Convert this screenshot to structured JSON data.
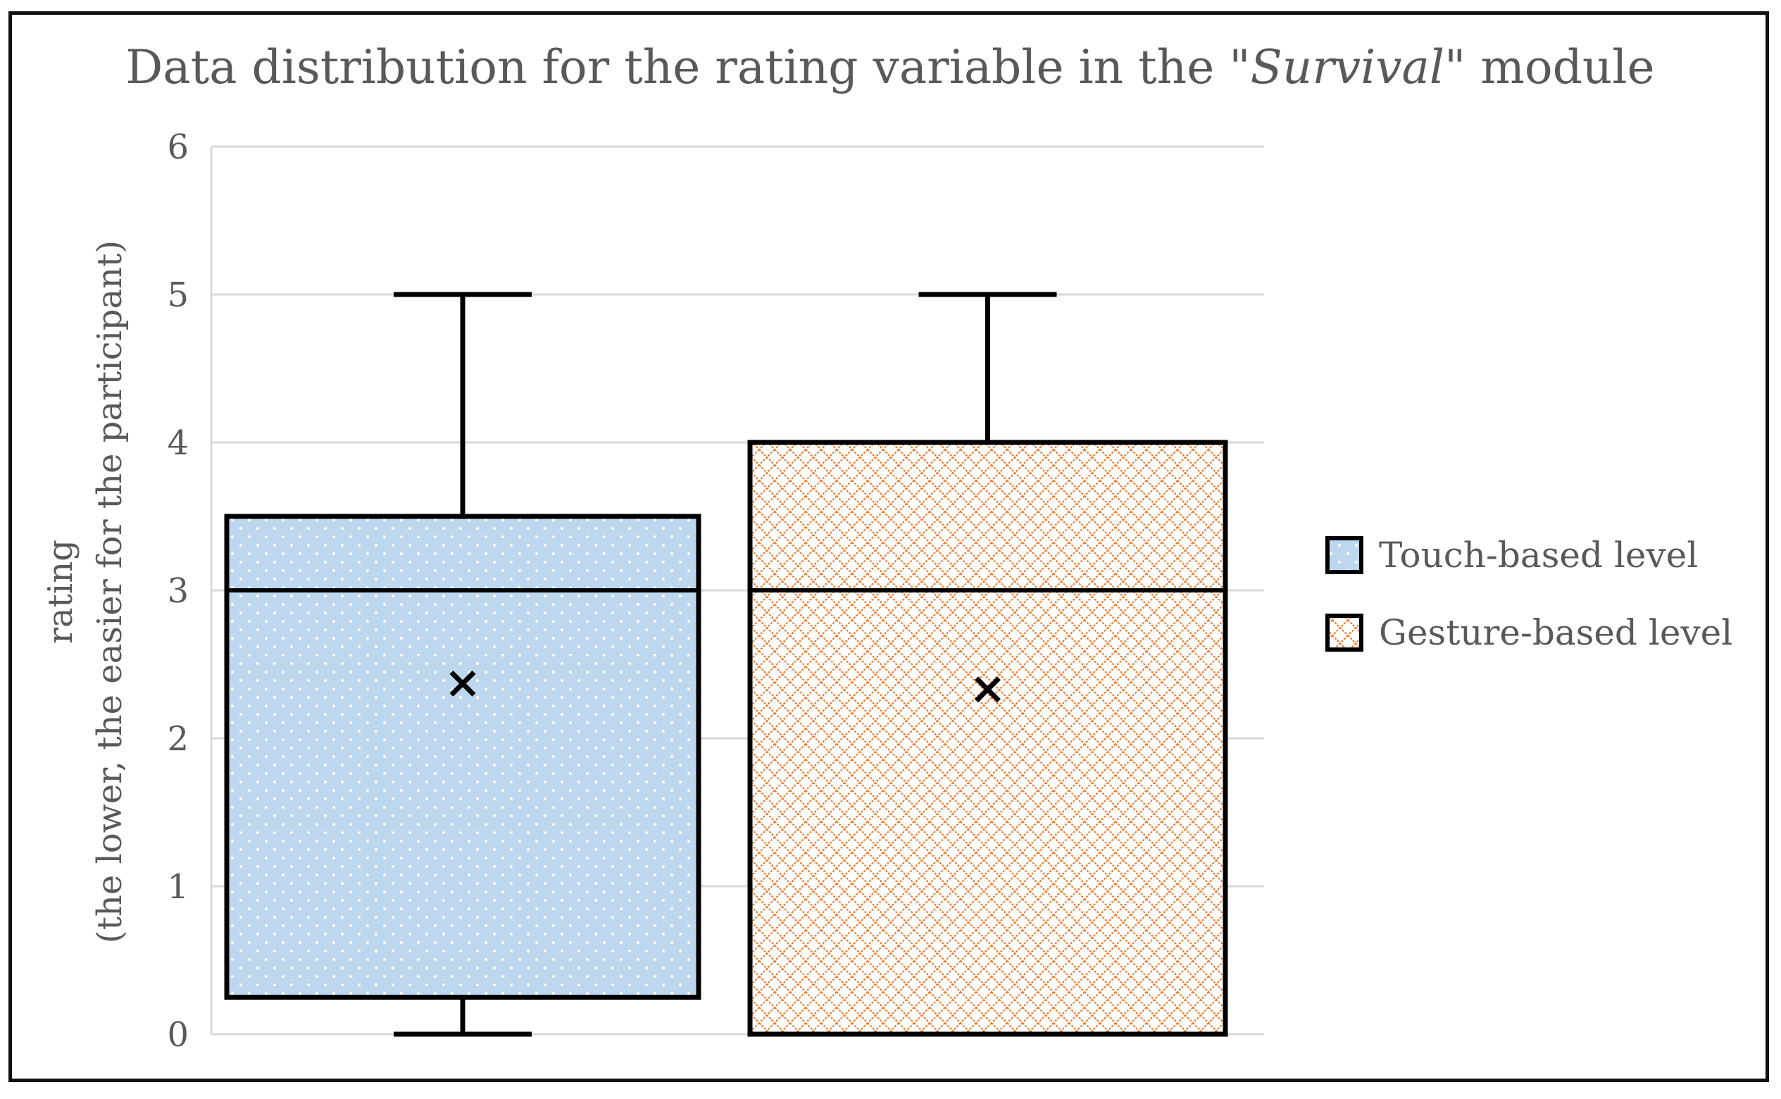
{
  "chart_data": {
    "type": "box",
    "title_parts": [
      "Data distribution for the rating variable in the \"",
      "Survival",
      "\" module"
    ],
    "ylabel_line1": "rating",
    "ylabel_line2": "(the lower,  the easier for the participant)",
    "ylim": [
      0,
      6
    ],
    "yticks": [
      "0",
      "1",
      "2",
      "3",
      "4",
      "5",
      "6"
    ],
    "grid": true,
    "legend_position": "right",
    "series": [
      {
        "name": "Touch-based level",
        "pattern": "dots",
        "fill_color": "#bdd7ee",
        "min": 0,
        "q1": 0.25,
        "median": 3,
        "q3": 3.5,
        "max": 5,
        "mean": 2.37
      },
      {
        "name": "Gesture-based level",
        "pattern": "crosshatch",
        "fill_color": "#ed7d31",
        "min": 0,
        "q1": 0,
        "median": 3,
        "q3": 4,
        "max": 5,
        "mean": 2.33
      }
    ],
    "colors": {
      "axis_text": "#595959",
      "gridline": "#d9d9d9",
      "stroke": "#000000"
    }
  }
}
